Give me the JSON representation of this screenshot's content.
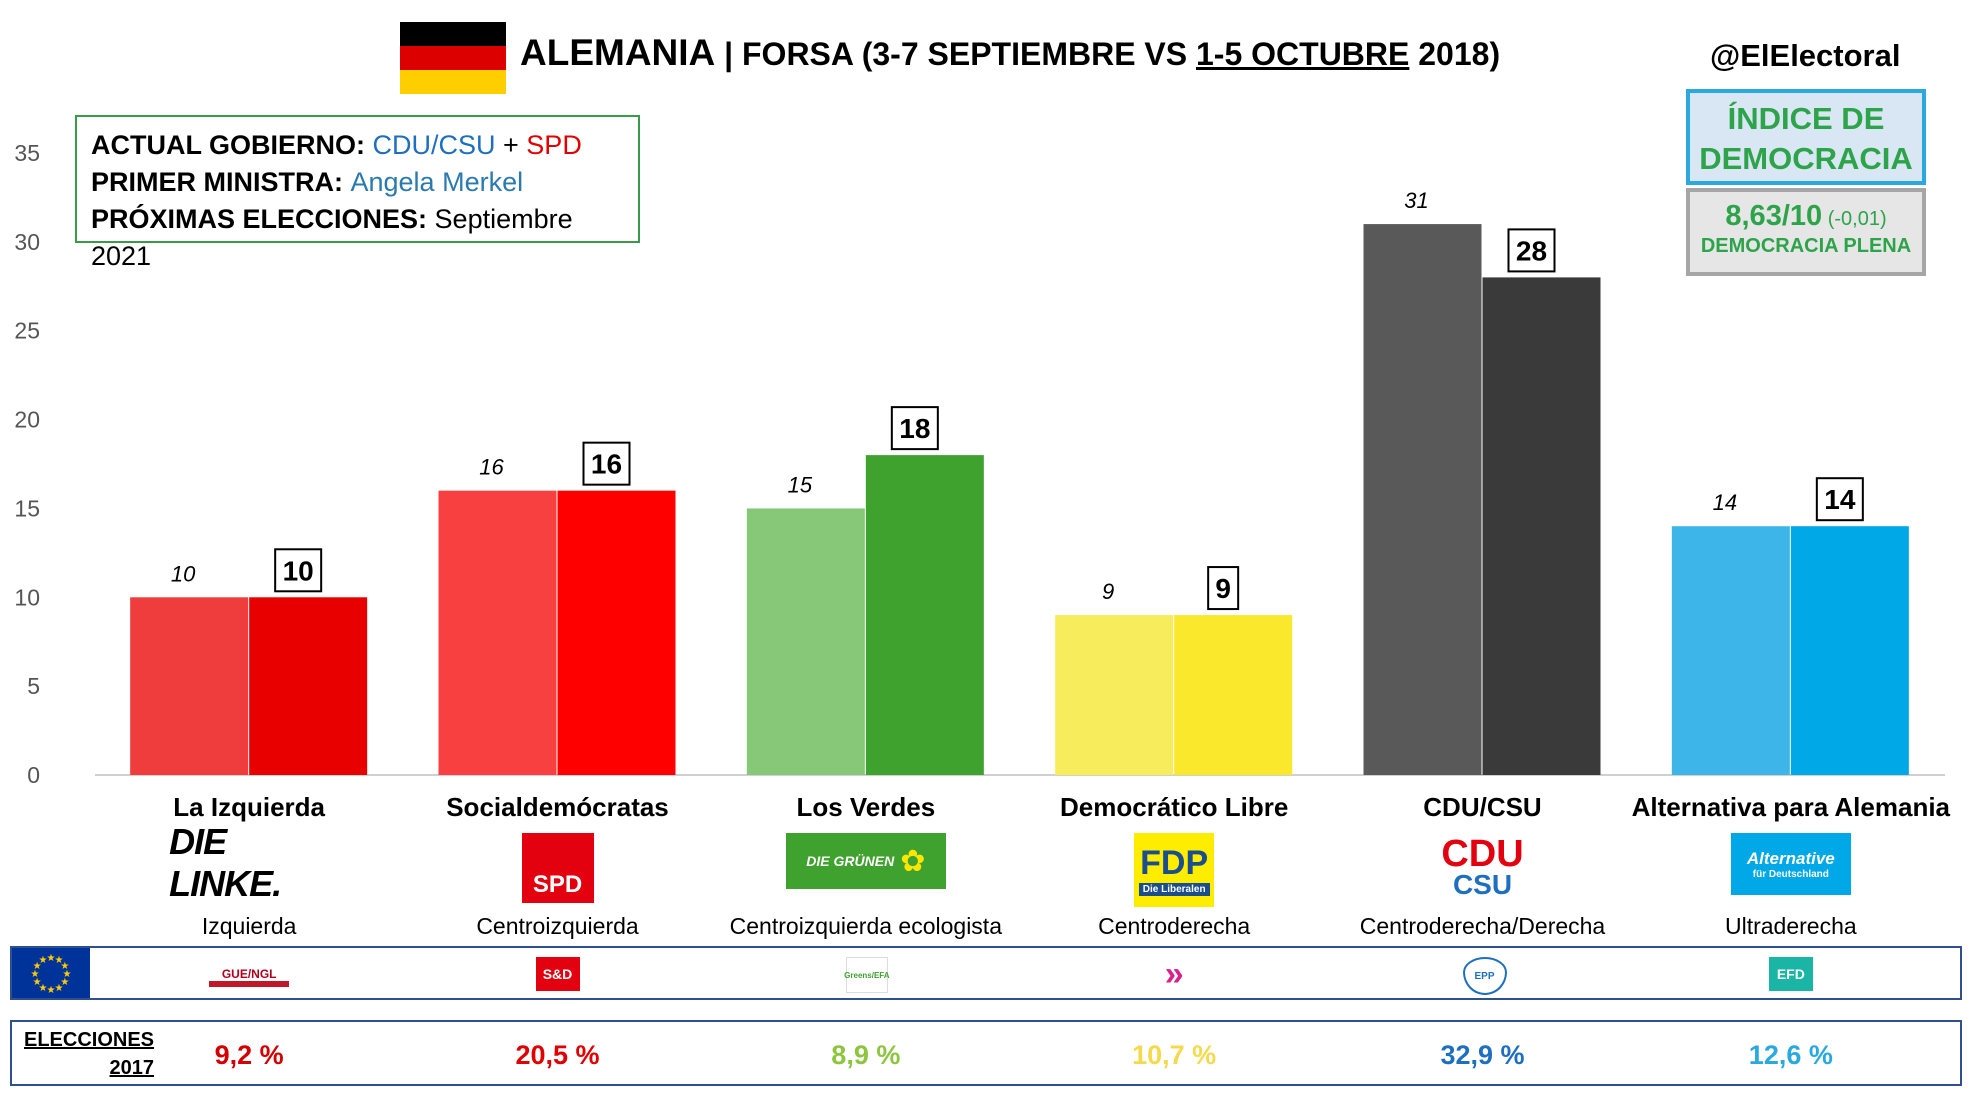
{
  "header": {
    "country": "ALEMANIA",
    "separator": " | ",
    "pollster_prefix": "FORSA (3-7 SEPTIEMBRE VS ",
    "current_period": "1-5 OCTUBRE",
    "pollster_suffix": " 2018)",
    "handle": "@ElElectoral"
  },
  "flag_colors": [
    "#000000",
    "#dd0000",
    "#ffce00"
  ],
  "info": {
    "gov_label": "ACTUAL GOBIERNO: ",
    "gov_party1": "CDU/CSU",
    "gov_plus": " + ",
    "gov_party2": "SPD",
    "pm_label": "PRIMER MINISTRA: ",
    "pm_value": "Angela Merkel",
    "next_label": "PRÓXIMAS ELECCIONES: ",
    "next_value": "Septiembre 2021"
  },
  "democracy": {
    "title_line1": "ÍNDICE DE",
    "title_line2": "DEMOCRACIA",
    "score": "8,63/10",
    "change": " (-0,01)",
    "level": "DEMOCRACIA PLENA"
  },
  "chart_data": {
    "type": "bar",
    "ylim": [
      0,
      35
    ],
    "yticks": [
      0,
      5,
      10,
      15,
      20,
      25,
      30,
      35
    ],
    "categories": [
      "La Izquierda",
      "Socialdemócratas",
      "Los Verdes",
      "Democrático Libre",
      "CDU/CSU",
      "Alternativa para Alemania"
    ],
    "series": [
      {
        "values": [
          10,
          16,
          15,
          9,
          31,
          14
        ],
        "colors": [
          "#ef3d3d",
          "#f94040",
          "#86c778",
          "#f7ec5c",
          "#595959",
          "#3eb5e8"
        ]
      },
      {
        "values": [
          10,
          16,
          18,
          9,
          28,
          14
        ],
        "colors": [
          "#e80000",
          "#ff0000",
          "#3fa12e",
          "#f9e82c",
          "#3a3a3a",
          "#00a8e8"
        ]
      }
    ],
    "grid": false
  },
  "parties": [
    {
      "name": "La Izquierda",
      "logo": "DIE LINKE.",
      "ideology": "Izquierda",
      "eu_group": "GUE/NGL",
      "election_2017": "9,2 %",
      "color": "#d40000"
    },
    {
      "name": "Socialdemócratas",
      "logo": "SPD",
      "ideology": "Centroizquierda",
      "eu_group": "S&D",
      "election_2017": "20,5 %",
      "color": "#e00000"
    },
    {
      "name": "Los Verdes",
      "logo": "DIE GRÜNEN",
      "ideology": "Centroizquierda ecologista",
      "eu_group": "Greens/EFA",
      "election_2017": "8,9 %",
      "color": "#8cc63f"
    },
    {
      "name": "Democrático Libre",
      "logo": "FDP",
      "logo_sub": "Die Liberalen",
      "ideology": "Centroderecha",
      "eu_group": "»",
      "election_2017": "10,7 %",
      "color": "#f7d94c"
    },
    {
      "name": "CDU/CSU",
      "logo": "CDU",
      "logo2": "CSU",
      "ideology": "Centroderecha/Derecha",
      "eu_group": "EPP",
      "election_2017": "32,9 %",
      "color": "#1e6fc0"
    },
    {
      "name": "Alternativa para Alemania",
      "logo": "Alternative",
      "logo_sub": "für Deutschland",
      "ideology": "Ultraderecha",
      "eu_group": "EFD",
      "election_2017": "12,6 %",
      "color": "#29a9e0"
    }
  ],
  "elections": {
    "label_line1": "ELECCIONES",
    "label_line2": "2017"
  }
}
